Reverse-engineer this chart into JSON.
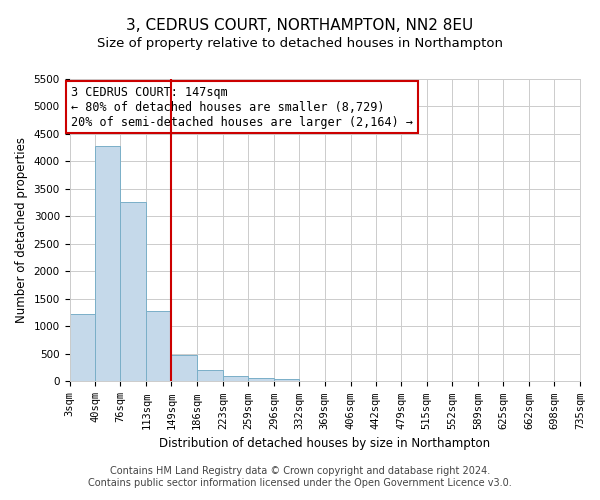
{
  "title": "3, CEDRUS COURT, NORTHAMPTON, NN2 8EU",
  "subtitle": "Size of property relative to detached houses in Northampton",
  "xlabel": "Distribution of detached houses by size in Northampton",
  "ylabel": "Number of detached properties",
  "footer_line1": "Contains HM Land Registry data © Crown copyright and database right 2024.",
  "footer_line2": "Contains public sector information licensed under the Open Government Licence v3.0.",
  "annotation_line1": "3 CEDRUS COURT: 147sqm",
  "annotation_line2": "← 80% of detached houses are smaller (8,729)",
  "annotation_line3": "20% of semi-detached houses are larger (2,164) →",
  "bin_edges": [
    3,
    40,
    76,
    113,
    149,
    186,
    223,
    259,
    296,
    332,
    369,
    406,
    442,
    479,
    515,
    552,
    589,
    625,
    662,
    698,
    735
  ],
  "bar_heights": [
    1230,
    4280,
    3260,
    1280,
    480,
    200,
    100,
    60,
    50,
    0,
    0,
    0,
    0,
    0,
    0,
    0,
    0,
    0,
    0,
    0
  ],
  "bar_color": "#c5d9ea",
  "bar_edge_color": "#7aafc8",
  "vline_x": 149,
  "vline_color": "#cc0000",
  "ylim": [
    0,
    5500
  ],
  "yticks": [
    0,
    500,
    1000,
    1500,
    2000,
    2500,
    3000,
    3500,
    4000,
    4500,
    5000,
    5500
  ],
  "xtick_labels": [
    "3sqm",
    "40sqm",
    "76sqm",
    "113sqm",
    "149sqm",
    "186sqm",
    "223sqm",
    "259sqm",
    "296sqm",
    "332sqm",
    "369sqm",
    "406sqm",
    "442sqm",
    "479sqm",
    "515sqm",
    "552sqm",
    "589sqm",
    "625sqm",
    "662sqm",
    "698sqm",
    "735sqm"
  ],
  "bg_color": "#ffffff",
  "grid_color": "#cccccc",
  "annotation_box_color": "#cc0000",
  "title_fontsize": 11,
  "subtitle_fontsize": 9.5,
  "axis_label_fontsize": 8.5,
  "tick_fontsize": 7.5,
  "annotation_fontsize": 8.5,
  "footer_fontsize": 7
}
